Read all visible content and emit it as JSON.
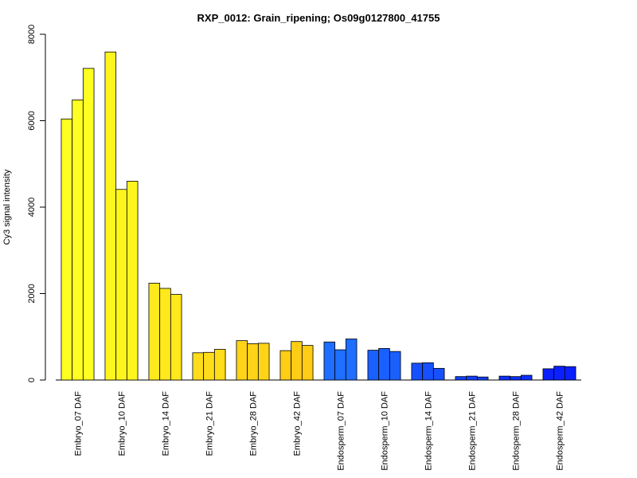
{
  "chart_data": {
    "type": "bar",
    "title": "RXP_0012: Grain_ripening; Os09g0127800_41755",
    "xlabel": "",
    "ylabel": "Cy3 signal intensity",
    "ylim": [
      0,
      8000
    ],
    "yticks": [
      0,
      2000,
      4000,
      6000,
      8000
    ],
    "replicates_per_group": 3,
    "groups": [
      {
        "label": "Embryo_07 DAF",
        "values": [
          6040,
          6480,
          7210
        ],
        "color": "#FFFF22"
      },
      {
        "label": "Embryo_10 DAF",
        "values": [
          7590,
          4410,
          4600
        ],
        "color": "#FFF51E"
      },
      {
        "label": "Embryo_14 DAF",
        "values": [
          2240,
          2120,
          1980
        ],
        "color": "#FFE81C"
      },
      {
        "label": "Embryo_21 DAF",
        "values": [
          630,
          640,
          710
        ],
        "color": "#FFDD1A"
      },
      {
        "label": "Embryo_28 DAF",
        "values": [
          910,
          840,
          850
        ],
        "color": "#FFD418"
      },
      {
        "label": "Embryo_42 DAF",
        "values": [
          680,
          890,
          800
        ],
        "color": "#FFCC16"
      },
      {
        "label": "Endosperm_07 DAF",
        "values": [
          880,
          700,
          950
        ],
        "color": "#1E6EFF"
      },
      {
        "label": "Endosperm_10 DAF",
        "values": [
          690,
          730,
          660
        ],
        "color": "#1A60FF"
      },
      {
        "label": "Endosperm_14 DAF",
        "values": [
          390,
          400,
          270
        ],
        "color": "#1650FF"
      },
      {
        "label": "Endosperm_21 DAF",
        "values": [
          80,
          90,
          70
        ],
        "color": "#1240FF"
      },
      {
        "label": "Endosperm_28 DAF",
        "values": [
          90,
          80,
          110
        ],
        "color": "#0D30FF"
      },
      {
        "label": "Endosperm_42 DAF",
        "values": [
          260,
          320,
          310
        ],
        "color": "#0A20FF"
      }
    ]
  }
}
